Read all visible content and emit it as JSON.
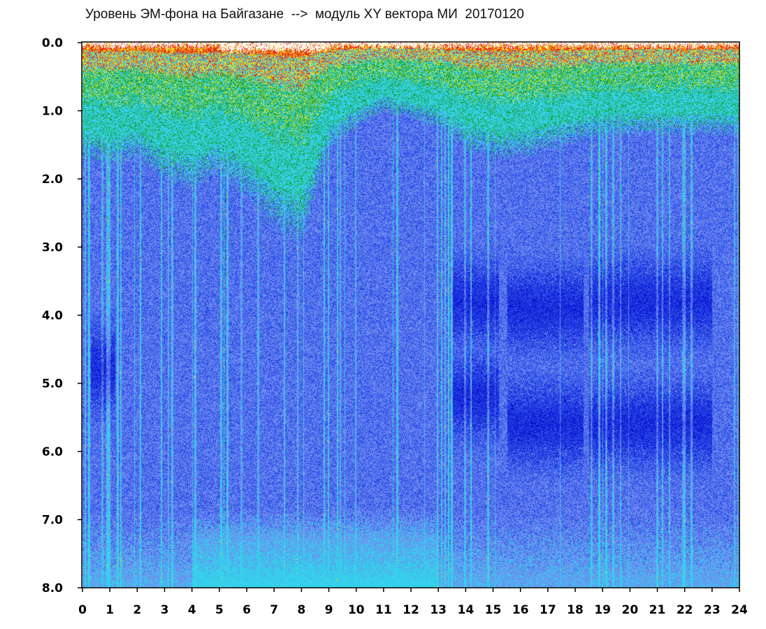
{
  "chart_data": {
    "type": "heatmap",
    "title": "Уровень ЭМ-фона на Байгазане  -->  модуль XY вектора МИ  20170120",
    "xlabel": "",
    "ylabel": "",
    "x_ticks": [
      "0",
      "1",
      "2",
      "3",
      "4",
      "5",
      "6",
      "7",
      "8",
      "9",
      "10",
      "11",
      "12",
      "13",
      "14",
      "15",
      "16",
      "17",
      "18",
      "19",
      "20",
      "21",
      "22",
      "23",
      "24"
    ],
    "y_ticks": [
      "0.0",
      "1.0",
      "2.0",
      "3.0",
      "4.0",
      "5.0",
      "6.0",
      "7.0",
      "8.0"
    ],
    "xlim": [
      0,
      24
    ],
    "ylim": [
      0,
      8
    ],
    "y_inverted": true,
    "grid": false,
    "legend": "none",
    "colormap": [
      "#0a14d2",
      "#2a4be6",
      "#6f8cf0",
      "#35d0ec",
      "#14a01e",
      "#f0e614",
      "#e61e1e"
    ],
    "frame_color": "#000000",
    "level_profile": {
      "hours": [
        0,
        1,
        2,
        3,
        4,
        5,
        6,
        7,
        8,
        9,
        10,
        11,
        12,
        13,
        14,
        15,
        16,
        17,
        18,
        19,
        20,
        21,
        22,
        23,
        24
      ],
      "upper_band_limit": [
        1.5,
        1.6,
        1.5,
        1.8,
        1.9,
        1.7,
        2.0,
        2.4,
        2.6,
        1.4,
        1.1,
        0.9,
        1.0,
        1.1,
        1.4,
        1.5,
        1.5,
        1.4,
        1.3,
        1.2,
        1.2,
        1.2,
        1.2,
        1.2,
        1.2
      ],
      "dark_band_centers": [
        {
          "from": 0.3,
          "to": 1.2,
          "y": 4.8
        },
        {
          "from": 13.5,
          "to": 15.2,
          "y": 3.8
        },
        {
          "from": 13.5,
          "to": 15.2,
          "y": 5.2
        },
        {
          "from": 15.5,
          "to": 18.3,
          "y": 3.9
        },
        {
          "from": 15.5,
          "to": 18.3,
          "y": 5.6
        },
        {
          "from": 18.5,
          "to": 23.0,
          "y": 3.8
        },
        {
          "from": 18.5,
          "to": 23.0,
          "y": 5.6
        }
      ]
    }
  }
}
